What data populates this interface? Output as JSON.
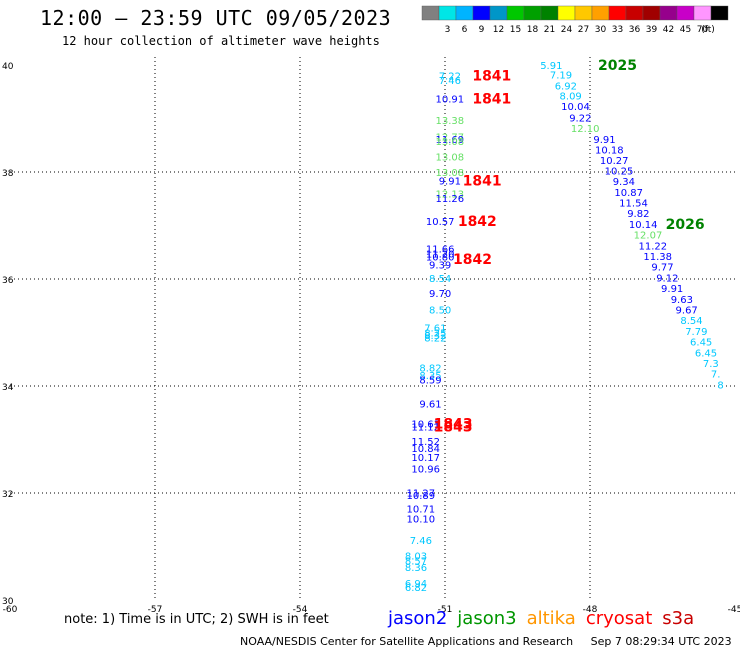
{
  "header": {
    "title": "12:00 — 23:59 UTC 09/05/2023",
    "subtitle": "12 hour collection of altimeter wave heights"
  },
  "colorbar": {
    "unit": "(ft)",
    "bins": [
      {
        "label": "",
        "color": "#808080"
      },
      {
        "label": "3",
        "color": "#00e6e6"
      },
      {
        "label": "6",
        "color": "#00b4ff"
      },
      {
        "label": "9",
        "color": "#0000ff"
      },
      {
        "label": "12",
        "color": "#0096c8"
      },
      {
        "label": "15",
        "color": "#00c800"
      },
      {
        "label": "18",
        "color": "#00a000"
      },
      {
        "label": "21",
        "color": "#008200"
      },
      {
        "label": "24",
        "color": "#ffff00"
      },
      {
        "label": "27",
        "color": "#ffc800"
      },
      {
        "label": "30",
        "color": "#ffa000"
      },
      {
        "label": "33",
        "color": "#ff0000"
      },
      {
        "label": "36",
        "color": "#c80000"
      },
      {
        "label": "39",
        "color": "#a00000"
      },
      {
        "label": "42",
        "color": "#96008c"
      },
      {
        "label": "45",
        "color": "#c800c8"
      },
      {
        "label": "70",
        "color": "#ff96ff"
      },
      {
        "label": "",
        "color": "#000000"
      }
    ]
  },
  "footer": {
    "note": "note:  1) Time is in UTC;  2) SWH is in feet",
    "satellites": [
      {
        "name": "jason2",
        "color": "#0000ff"
      },
      {
        "name": "jason3",
        "color": "#009600"
      },
      {
        "name": "altika",
        "color": "#ff9600"
      },
      {
        "name": "cryosat",
        "color": "#ff0000"
      },
      {
        "name": "s3a",
        "color": "#c80000"
      }
    ],
    "credit": "NOAA/NESDIS Center for Satellite Applications and Research",
    "timestamp": "Sep  7 08:29:34 UTC 2023"
  },
  "chart_data": {
    "type": "scatter",
    "xlim": [
      -60,
      -45
    ],
    "ylim": [
      30,
      40
    ],
    "xticks": [
      "-60",
      "-57",
      "-54",
      "-51",
      "-48",
      "-45"
    ],
    "yticks": [
      "30",
      "32",
      "34",
      "36",
      "38",
      "40"
    ],
    "grid": true,
    "series": [
      {
        "name": "pass 1 (jason/altimeter track near -51)",
        "points": [
          {
            "lon": -50.9,
            "lat": 39.8,
            "label": "7.22",
            "color": "#00c8ff"
          },
          {
            "lon": -50.9,
            "lat": 39.72,
            "label": "7.46",
            "color": "#00c8ff"
          },
          {
            "lon": -50.9,
            "lat": 39.37,
            "label": "10.91",
            "color": "#0000ff"
          },
          {
            "lon": -50.9,
            "lat": 38.97,
            "label": "13.38",
            "color": "#66e066"
          },
          {
            "lon": -50.9,
            "lat": 38.66,
            "label": "12.77",
            "color": "#66e066"
          },
          {
            "lon": -50.9,
            "lat": 38.62,
            "label": "11.69",
            "color": "#0000ff"
          },
          {
            "lon": -50.9,
            "lat": 38.58,
            "label": "13.08",
            "color": "#66e066"
          },
          {
            "lon": -50.9,
            "lat": 38.29,
            "label": "13.08",
            "color": "#66e066"
          },
          {
            "lon": -50.9,
            "lat": 38.0,
            "label": "13.08",
            "color": "#66e066"
          },
          {
            "lon": -50.9,
            "lat": 37.84,
            "label": "9.91",
            "color": "#0000ff"
          },
          {
            "lon": -50.9,
            "lat": 37.6,
            "label": "12.13",
            "color": "#66e066"
          },
          {
            "lon": -50.9,
            "lat": 37.51,
            "label": "11.26",
            "color": "#0000ff"
          },
          {
            "lon": -51.1,
            "lat": 37.08,
            "label": "10.57",
            "color": "#0000ff"
          },
          {
            "lon": -51.1,
            "lat": 36.57,
            "label": "11.66",
            "color": "#0000ff"
          },
          {
            "lon": -51.1,
            "lat": 36.48,
            "label": "11.20",
            "color": "#0000ff"
          },
          {
            "lon": -51.1,
            "lat": 36.42,
            "label": "10.80",
            "color": "#0000ff"
          },
          {
            "lon": -51.1,
            "lat": 36.27,
            "label": "9.39",
            "color": "#0000ff"
          },
          {
            "lon": -51.1,
            "lat": 36.02,
            "label": "8.54",
            "color": "#00c8ff"
          },
          {
            "lon": -51.1,
            "lat": 35.74,
            "label": "9.70",
            "color": "#0000ff"
          },
          {
            "lon": -51.1,
            "lat": 35.43,
            "label": "8.50",
            "color": "#00c8ff"
          },
          {
            "lon": -51.2,
            "lat": 35.09,
            "label": "7.61",
            "color": "#00c8ff"
          },
          {
            "lon": -51.2,
            "lat": 35.0,
            "label": "8.25",
            "color": "#00c8ff"
          },
          {
            "lon": -51.2,
            "lat": 34.95,
            "label": "8.32",
            "color": "#00c8ff"
          },
          {
            "lon": -51.2,
            "lat": 34.91,
            "label": "8.22",
            "color": "#00c8ff"
          },
          {
            "lon": -51.3,
            "lat": 34.35,
            "label": "8.82",
            "color": "#00c8ff"
          },
          {
            "lon": -51.3,
            "lat": 34.21,
            "label": "8.35",
            "color": "#00c8ff"
          },
          {
            "lon": -51.3,
            "lat": 34.12,
            "label": "8.59",
            "color": "#0000ff"
          },
          {
            "lon": -51.3,
            "lat": 33.67,
            "label": "9.61",
            "color": "#0000ff"
          },
          {
            "lon": -51.4,
            "lat": 33.3,
            "label": "10.61",
            "color": "#0000ff"
          },
          {
            "lon": -51.4,
            "lat": 33.24,
            "label": "11.12",
            "color": "#0000ff"
          },
          {
            "lon": -51.4,
            "lat": 32.97,
            "label": "11.52",
            "color": "#0000ff"
          },
          {
            "lon": -51.4,
            "lat": 32.84,
            "label": "10.84",
            "color": "#0000ff"
          },
          {
            "lon": -51.4,
            "lat": 32.67,
            "label": "10.17",
            "color": "#0000ff"
          },
          {
            "lon": -51.4,
            "lat": 32.46,
            "label": "10.96",
            "color": "#0000ff"
          },
          {
            "lon": -51.5,
            "lat": 32.01,
            "label": "11.27",
            "color": "#0000ff"
          },
          {
            "lon": -51.5,
            "lat": 31.96,
            "label": "10.89",
            "color": "#0000ff"
          },
          {
            "lon": -51.5,
            "lat": 31.71,
            "label": "10.71",
            "color": "#0000ff"
          },
          {
            "lon": -51.5,
            "lat": 31.52,
            "label": "10.10",
            "color": "#0000ff"
          },
          {
            "lon": -51.5,
            "lat": 31.12,
            "label": "7.46",
            "color": "#00c8ff"
          },
          {
            "lon": -51.6,
            "lat": 30.83,
            "label": "8.03",
            "color": "#00c8ff"
          },
          {
            "lon": -51.6,
            "lat": 30.74,
            "label": "8.57",
            "color": "#00c8ff"
          },
          {
            "lon": -51.6,
            "lat": 30.62,
            "label": "8.36",
            "color": "#00c8ff"
          },
          {
            "lon": -51.6,
            "lat": 30.32,
            "label": "6.94",
            "color": "#00c8ff"
          },
          {
            "lon": -51.6,
            "lat": 30.24,
            "label": "6.82",
            "color": "#00c8ff"
          }
        ],
        "time_labels": [
          {
            "lon": -50.6,
            "lat": 39.8,
            "text": "1841"
          },
          {
            "lon": -50.6,
            "lat": 39.37,
            "text": "1841"
          },
          {
            "lon": -50.8,
            "lat": 37.84,
            "text": "1841"
          },
          {
            "lon": -50.9,
            "lat": 37.08,
            "text": "1842"
          },
          {
            "lon": -51.0,
            "lat": 36.37,
            "text": "1842"
          },
          {
            "lon": -51.4,
            "lat": 33.3,
            "text": "1843"
          },
          {
            "lon": -51.4,
            "lat": 33.24,
            "text": "1843"
          }
        ]
      },
      {
        "name": "pass 2 (track from -48 toward -45)",
        "points": [
          {
            "lon": -48.8,
            "lat": 40.0,
            "label": "5.91",
            "color": "#00c8ff"
          },
          {
            "lon": -48.6,
            "lat": 39.82,
            "label": "7.19",
            "color": "#00c8ff"
          },
          {
            "lon": -48.5,
            "lat": 39.62,
            "label": "6.92",
            "color": "#00c8ff"
          },
          {
            "lon": -48.4,
            "lat": 39.43,
            "label": "8.09",
            "color": "#00c8ff"
          },
          {
            "lon": -48.3,
            "lat": 39.23,
            "label": "10.04",
            "color": "#0000ff"
          },
          {
            "lon": -48.2,
            "lat": 39.02,
            "label": "9.22",
            "color": "#0000ff"
          },
          {
            "lon": -48.1,
            "lat": 38.82,
            "label": "12.10",
            "color": "#66e066"
          },
          {
            "lon": -47.7,
            "lat": 38.62,
            "label": "9.91",
            "color": "#0000ff"
          },
          {
            "lon": -47.6,
            "lat": 38.42,
            "label": "10.18",
            "color": "#0000ff"
          },
          {
            "lon": -47.5,
            "lat": 38.22,
            "label": "10.27",
            "color": "#0000ff"
          },
          {
            "lon": -47.4,
            "lat": 38.03,
            "label": "10.25",
            "color": "#0000ff"
          },
          {
            "lon": -47.3,
            "lat": 37.83,
            "label": "9.34",
            "color": "#0000ff"
          },
          {
            "lon": -47.2,
            "lat": 37.63,
            "label": "10.87",
            "color": "#0000ff"
          },
          {
            "lon": -47.1,
            "lat": 37.43,
            "label": "11.54",
            "color": "#0000ff"
          },
          {
            "lon": -47.0,
            "lat": 37.23,
            "label": "9.82",
            "color": "#0000ff"
          },
          {
            "lon": -46.9,
            "lat": 37.03,
            "label": "10.14",
            "color": "#0000ff"
          },
          {
            "lon": -46.8,
            "lat": 36.83,
            "label": "12.07",
            "color": "#66e066"
          },
          {
            "lon": -46.7,
            "lat": 36.63,
            "label": "11.22",
            "color": "#0000ff"
          },
          {
            "lon": -46.6,
            "lat": 36.43,
            "label": "11.38",
            "color": "#0000ff"
          },
          {
            "lon": -46.5,
            "lat": 36.23,
            "label": "9.77",
            "color": "#0000ff"
          },
          {
            "lon": -46.4,
            "lat": 36.03,
            "label": "9.12",
            "color": "#0000ff"
          },
          {
            "lon": -46.3,
            "lat": 35.83,
            "label": "9.91",
            "color": "#0000ff"
          },
          {
            "lon": -46.1,
            "lat": 35.63,
            "label": "9.63",
            "color": "#0000ff"
          },
          {
            "lon": -46.0,
            "lat": 35.43,
            "label": "9.67",
            "color": "#0000ff"
          },
          {
            "lon": -45.9,
            "lat": 35.23,
            "label": "8.54",
            "color": "#00c8ff"
          },
          {
            "lon": -45.8,
            "lat": 35.03,
            "label": "7.79",
            "color": "#00c8ff"
          },
          {
            "lon": -45.7,
            "lat": 34.83,
            "label": "6.45",
            "color": "#00c8ff"
          },
          {
            "lon": -45.6,
            "lat": 34.63,
            "label": "6.45",
            "color": "#00c8ff"
          },
          {
            "lon": -45.5,
            "lat": 34.43,
            "label": "7.3",
            "color": "#00c8ff"
          },
          {
            "lon": -45.4,
            "lat": 34.23,
            "label": "7.",
            "color": "#00c8ff"
          },
          {
            "lon": -45.3,
            "lat": 34.03,
            "label": "8",
            "color": "#00c8ff"
          }
        ],
        "time_labels": [
          {
            "lon": -48.0,
            "lat": 40.0,
            "text": "2025"
          },
          {
            "lon": -46.6,
            "lat": 37.03,
            "text": "2026"
          }
        ]
      }
    ]
  }
}
